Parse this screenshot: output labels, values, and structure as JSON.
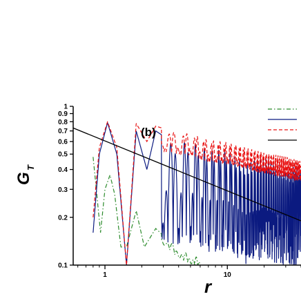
{
  "chart_data": {
    "type": "line",
    "panel_label": "(b)",
    "xlabel": "r",
    "ylabel": "G",
    "ylabel_subscript": "T",
    "xscale": "log",
    "yscale": "log",
    "xlim": [
      0.55,
      40
    ],
    "ylim": [
      0.1,
      1.0
    ],
    "x_ticks": [
      1,
      10
    ],
    "x_tick_labels": [
      "1",
      "10"
    ],
    "y_ticks": [
      0.1,
      0.2,
      0.3,
      0.4,
      0.5,
      0.6,
      0.7,
      0.8,
      0.9,
      1.0
    ],
    "y_tick_labels": [
      "0.1",
      "0.2",
      "0.3",
      "0.4",
      "0.5",
      "0.6",
      "0.7",
      "0.8",
      "0.9",
      "1"
    ],
    "legend_placement": "top-right",
    "grid": false,
    "series": [
      {
        "style": "dash-dot",
        "color": "#2a8a2a",
        "description_points": [
          [
            0.8,
            0.48
          ],
          [
            0.85,
            0.3
          ],
          [
            0.92,
            0.16
          ],
          [
            1.0,
            0.3
          ],
          [
            1.1,
            0.37
          ],
          [
            1.2,
            0.28
          ],
          [
            1.35,
            0.13
          ],
          [
            1.5,
            0.13
          ],
          [
            1.8,
            0.22
          ],
          [
            2.1,
            0.13
          ],
          [
            2.6,
            0.17
          ],
          [
            3.1,
            0.15
          ],
          [
            3.8,
            0.13
          ],
          [
            4.5,
            0.12
          ],
          [
            6.0,
            0.11
          ]
        ]
      },
      {
        "style": "solid",
        "color": "#0b1a80",
        "description_points": [
          [
            0.8,
            0.16
          ],
          [
            0.9,
            0.5
          ],
          [
            1.05,
            0.79
          ],
          [
            1.25,
            0.5
          ],
          [
            1.5,
            0.1
          ],
          [
            1.8,
            0.7
          ],
          [
            2.2,
            0.4
          ],
          [
            2.6,
            0.7
          ],
          [
            3.5,
            0.6
          ],
          [
            5,
            0.62
          ],
          [
            7,
            0.55
          ],
          [
            10,
            0.55
          ],
          [
            14,
            0.45
          ],
          [
            20,
            0.5
          ],
          [
            30,
            0.42
          ],
          [
            40,
            0.45
          ]
        ]
      },
      {
        "style": "dashed",
        "color": "#e81010",
        "description_points": [
          [
            0.8,
            0.2
          ],
          [
            0.9,
            0.55
          ],
          [
            1.05,
            0.8
          ],
          [
            1.25,
            0.55
          ],
          [
            1.5,
            0.1
          ],
          [
            1.8,
            0.78
          ],
          [
            2.2,
            0.6
          ],
          [
            2.6,
            0.75
          ],
          [
            3.5,
            0.7
          ],
          [
            5,
            0.68
          ],
          [
            7,
            0.62
          ],
          [
            10,
            0.6
          ],
          [
            14,
            0.56
          ],
          [
            20,
            0.52
          ],
          [
            30,
            0.49
          ],
          [
            40,
            0.46
          ]
        ]
      },
      {
        "style": "solid",
        "color": "#000000",
        "points": [
          [
            0.55,
            0.73
          ],
          [
            40,
            0.19
          ]
        ]
      }
    ],
    "legend": [
      "",
      "",
      "",
      ""
    ]
  }
}
